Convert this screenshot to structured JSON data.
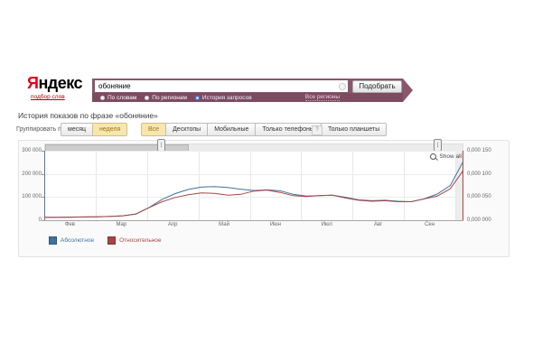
{
  "logo": {
    "part1": "Я",
    "part2": "ндекс",
    "sublink": "подбор слов"
  },
  "search": {
    "query": "обоняние",
    "submit_label": "Подобрать",
    "modes": [
      {
        "label": "По словам",
        "selected": false
      },
      {
        "label": "По регионам",
        "selected": false
      },
      {
        "label": "История запросов",
        "selected": true
      }
    ],
    "region_label": "Все регионы"
  },
  "page": {
    "title": "История показов по фразе «обоняние»"
  },
  "toolbar": {
    "group_label": "Группировать по:",
    "period_buttons": [
      {
        "label": "месяц",
        "selected": false
      },
      {
        "label": "неделя",
        "selected": true
      }
    ],
    "device_buttons": [
      {
        "label": "Все",
        "selected": true
      },
      {
        "label": "Десктопы",
        "selected": false
      },
      {
        "label": "Мобильные",
        "selected": false
      },
      {
        "label": "Только телефоны",
        "selected": false
      },
      {
        "label": "Только планшеты",
        "selected": false
      }
    ],
    "help_glyph": "?"
  },
  "chart": {
    "show_all_label": "Show all"
  },
  "chart_data": {
    "type": "line",
    "title": "История показов по фразе «обоняние»",
    "x_unit": "weeks, Feb–Sep",
    "categories_x": [
      "Фев",
      "Мар",
      "Апр",
      "Май",
      "Июн",
      "Июл",
      "Авг",
      "Сен"
    ],
    "grid": true,
    "legend_position": "bottom-left",
    "left_axis": {
      "min": 0,
      "max": 300000,
      "ticks": [
        "300 000",
        "200 000",
        "100 000",
        "0"
      ]
    },
    "right_axis": {
      "min": 0,
      "max": 0.00015,
      "ticks": [
        "0,000 150",
        "0,000 100",
        "0,000 050",
        "0,000 000"
      ]
    },
    "series": [
      {
        "name": "Абсолютное",
        "axis": "left",
        "color": "#41719c",
        "values": [
          13000,
          13000,
          13500,
          14000,
          15000,
          16500,
          19000,
          27000,
          55000,
          90000,
          115000,
          133000,
          143000,
          145000,
          141000,
          134000,
          128000,
          131000,
          127000,
          112000,
          104000,
          106000,
          108000,
          99000,
          88000,
          84000,
          86000,
          82000,
          80000,
          92000,
          113000,
          150000,
          255000
        ]
      },
      {
        "name": "Относительное",
        "axis": "right",
        "color": "#a94442",
        "values": [
          6e-06,
          6e-06,
          6.5e-06,
          7e-06,
          7.5e-06,
          8e-06,
          9.5e-06,
          1.35e-05,
          2.7e-05,
          4e-05,
          4.9e-05,
          5.5e-05,
          5.9e-05,
          5.8e-05,
          5.4e-05,
          5.6e-05,
          6.3e-05,
          6.5e-05,
          6e-05,
          5.3e-05,
          5.1e-05,
          5.3e-05,
          5.4e-05,
          4.8e-05,
          4.3e-05,
          4.1e-05,
          4.2e-05,
          4e-05,
          4e-05,
          4.6e-05,
          5.2e-05,
          6.8e-05,
          0.000108
        ]
      }
    ]
  }
}
